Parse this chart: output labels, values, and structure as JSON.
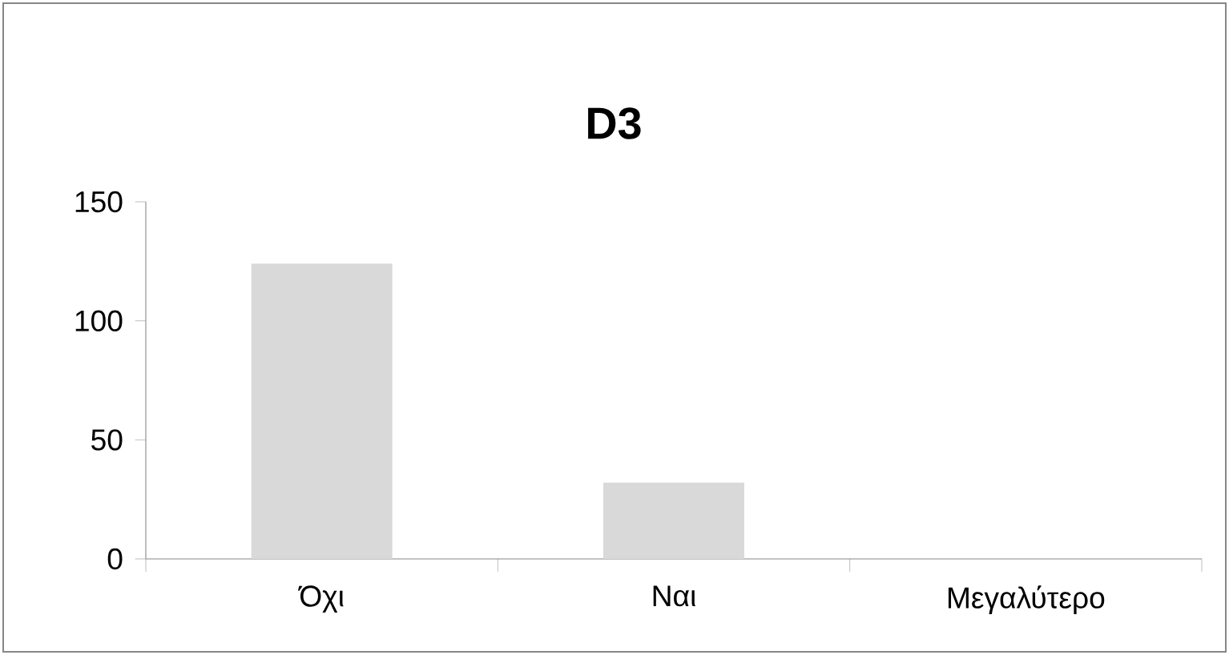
{
  "chart_data": {
    "type": "bar",
    "title": "D3",
    "categories": [
      "Όχι",
      "Ναι",
      "Μεγαλύτερο"
    ],
    "values": [
      124,
      32,
      0
    ],
    "color": "#d9d9d9",
    "ylim": [
      0,
      150
    ],
    "yticks": [
      0,
      50,
      100,
      150
    ],
    "grid": false
  }
}
